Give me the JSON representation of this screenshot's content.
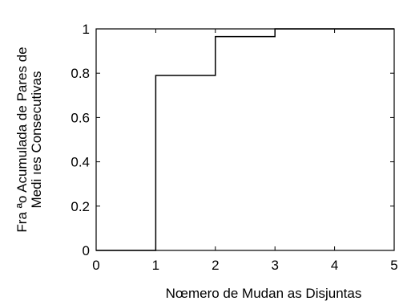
{
  "chart_data": {
    "type": "line",
    "step": "post",
    "title": "",
    "xlabel": "Nœmero de Mudan as Disjuntas",
    "ylabel_lines": [
      "Fra ªo Acumulada de Pares de",
      "Medi ıes Consecutivas"
    ],
    "xlim": [
      0,
      5
    ],
    "ylim": [
      0,
      1
    ],
    "xticks": [
      0,
      1,
      2,
      3,
      4,
      5
    ],
    "xtick_labels": [
      "0",
      "1",
      "2",
      "3",
      "4",
      "5"
    ],
    "yticks": [
      0,
      0.2,
      0.4,
      0.6,
      0.8,
      1
    ],
    "ytick_labels": [
      "0",
      "0.2",
      "0.4",
      "0.6",
      "0.8",
      "1"
    ],
    "grid": false,
    "series": [
      {
        "x": [
          0,
          1,
          2,
          3,
          5
        ],
        "y": [
          0,
          0.79,
          0.965,
          1.0,
          1.0
        ]
      }
    ],
    "colors": {
      "line": "#000000",
      "axes": "#000000"
    }
  }
}
